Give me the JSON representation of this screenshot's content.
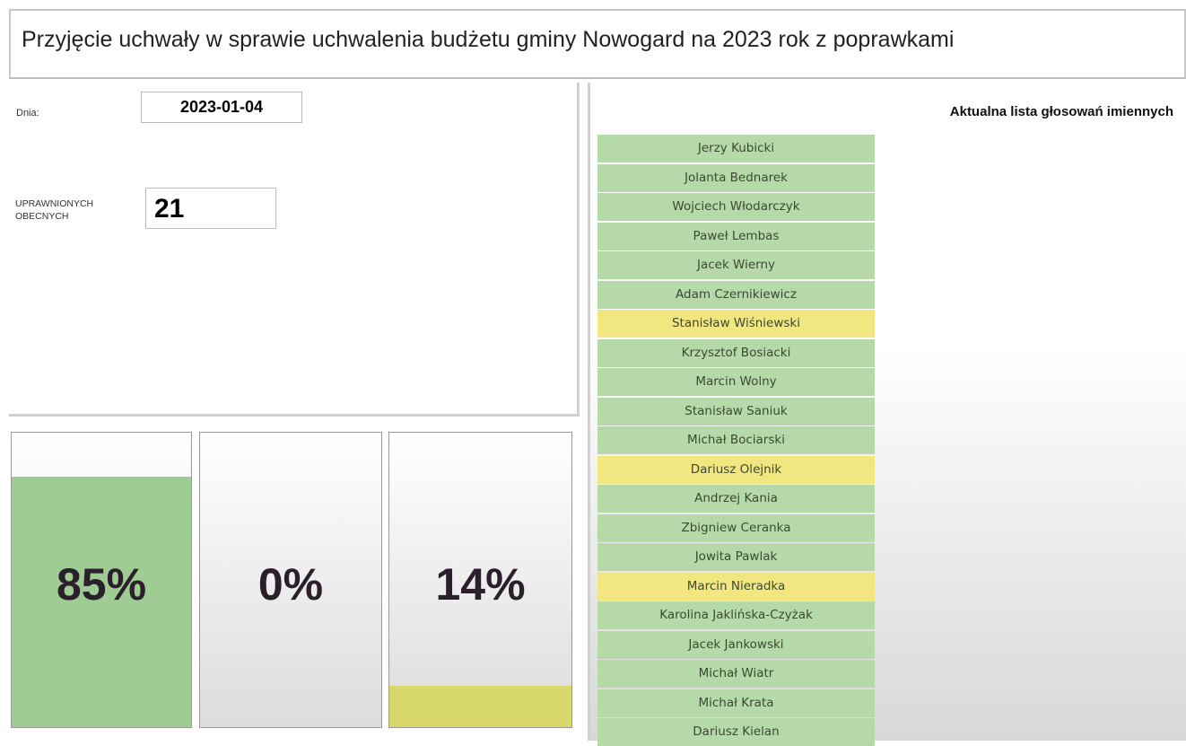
{
  "title": "Przyjęcie uchwały w sprawie uchwalenia budżetu gminy Nowogard na 2023 rok z poprawkami",
  "date_label": "Dnia:",
  "date": "2023-01-04",
  "eligible_label": "UPRAWNIONYCH",
  "present_label": "OBECNYCH",
  "present": 21,
  "votes": [
    {
      "value": 85,
      "label": "85%",
      "color": "#9fcc93"
    },
    {
      "value": 0,
      "label": "0%",
      "color": "#9fcc93"
    },
    {
      "value": 14,
      "label": "14%",
      "color": "#d9d86a"
    }
  ],
  "list_title": "Aktualna lista głosowań imiennych",
  "members": [
    {
      "name": "Jerzy Kubicki",
      "color": "#b5d9a8"
    },
    {
      "name": "Jolanta Bednarek",
      "color": "#b5d9a8"
    },
    {
      "name": "Wojciech Włodarczyk",
      "color": "#b5d9a8"
    },
    {
      "name": "Paweł Lembas",
      "color": "#b5d9a8"
    },
    {
      "name": "Jacek Wierny",
      "color": "#b5d9a8"
    },
    {
      "name": "Adam Czernikiewicz",
      "color": "#b5d9a8"
    },
    {
      "name": "Stanisław Wiśniewski",
      "color": "#f2e680"
    },
    {
      "name": "Krzysztof Bosiacki",
      "color": "#b5d9a8"
    },
    {
      "name": "Marcin Wolny",
      "color": "#b5d9a8"
    },
    {
      "name": "Stanisław Saniuk",
      "color": "#b5d9a8"
    },
    {
      "name": "Michał Bociarski",
      "color": "#b5d9a8"
    },
    {
      "name": "Dariusz Olejnik",
      "color": "#f2e680"
    },
    {
      "name": "Andrzej Kania",
      "color": "#b5d9a8"
    },
    {
      "name": "Zbigniew Ceranka",
      "color": "#b5d9a8"
    },
    {
      "name": "Jowita Pawlak",
      "color": "#b5d9a8"
    },
    {
      "name": "Marcin Nieradka",
      "color": "#f2e680"
    },
    {
      "name": "Karolina Jaklińska-Czyżak",
      "color": "#b5d9a8"
    },
    {
      "name": "Jacek Jankowski",
      "color": "#b5d9a8"
    },
    {
      "name": "Michał Wiatr",
      "color": "#b5d9a8"
    },
    {
      "name": "Michał Krata",
      "color": "#b5d9a8"
    },
    {
      "name": "Dariusz Kielan",
      "color": "#b5d9a8"
    }
  ]
}
